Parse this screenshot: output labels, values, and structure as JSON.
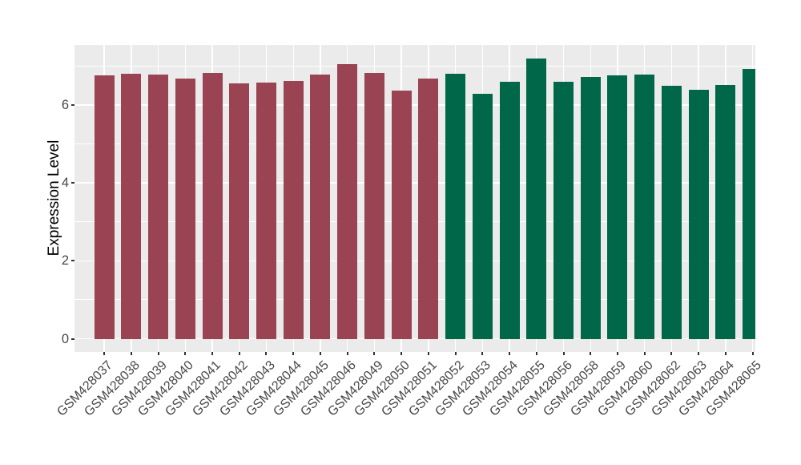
{
  "chart_data": {
    "type": "bar",
    "title": "",
    "xlabel": "",
    "ylabel": "Expression Level",
    "categories": [
      "GSM428037",
      "GSM428038",
      "GSM428039",
      "GSM428040",
      "GSM428041",
      "GSM428042",
      "GSM428043",
      "GSM428044",
      "GSM428045",
      "GSM428046",
      "GSM428049",
      "GSM428050",
      "GSM428051",
      "GSM428052",
      "GSM428053",
      "GSM428054",
      "GSM428055",
      "GSM428056",
      "GSM428058",
      "GSM428059",
      "GSM428060",
      "GSM428062",
      "GSM428063",
      "GSM428064",
      "GSM428065"
    ],
    "values": [
      6.75,
      6.8,
      6.78,
      6.67,
      6.82,
      6.56,
      6.58,
      6.62,
      6.78,
      7.04,
      6.81,
      6.36,
      6.67,
      6.8,
      6.29,
      6.6,
      7.19,
      6.59,
      6.72,
      6.76,
      6.78,
      6.5,
      6.38,
      6.51,
      6.93
    ],
    "bar_colors": [
      "#9A4352",
      "#9A4352",
      "#9A4352",
      "#9A4352",
      "#9A4352",
      "#9A4352",
      "#9A4352",
      "#9A4352",
      "#9A4352",
      "#9A4352",
      "#9A4352",
      "#9A4352",
      "#9A4352",
      "#006748",
      "#006748",
      "#006748",
      "#006748",
      "#006748",
      "#006748",
      "#006748",
      "#006748",
      "#006748",
      "#006748",
      "#006748",
      "#006748"
    ],
    "group_colors": {
      "group1": "#9A4352",
      "group2": "#006748"
    },
    "yticks": [
      0,
      2,
      4,
      6
    ],
    "minor_yticks": [
      1,
      3,
      5,
      7
    ],
    "ylim": [
      0,
      7.54
    ],
    "x_tick_angle": 45,
    "grid": "on",
    "legend": "none",
    "panel_bg": "#EBEBEB",
    "grid_color": "#FFFFFF",
    "tick_color": "#333333",
    "tick_label_color": "#474747",
    "axis_title_color": "#000000"
  }
}
